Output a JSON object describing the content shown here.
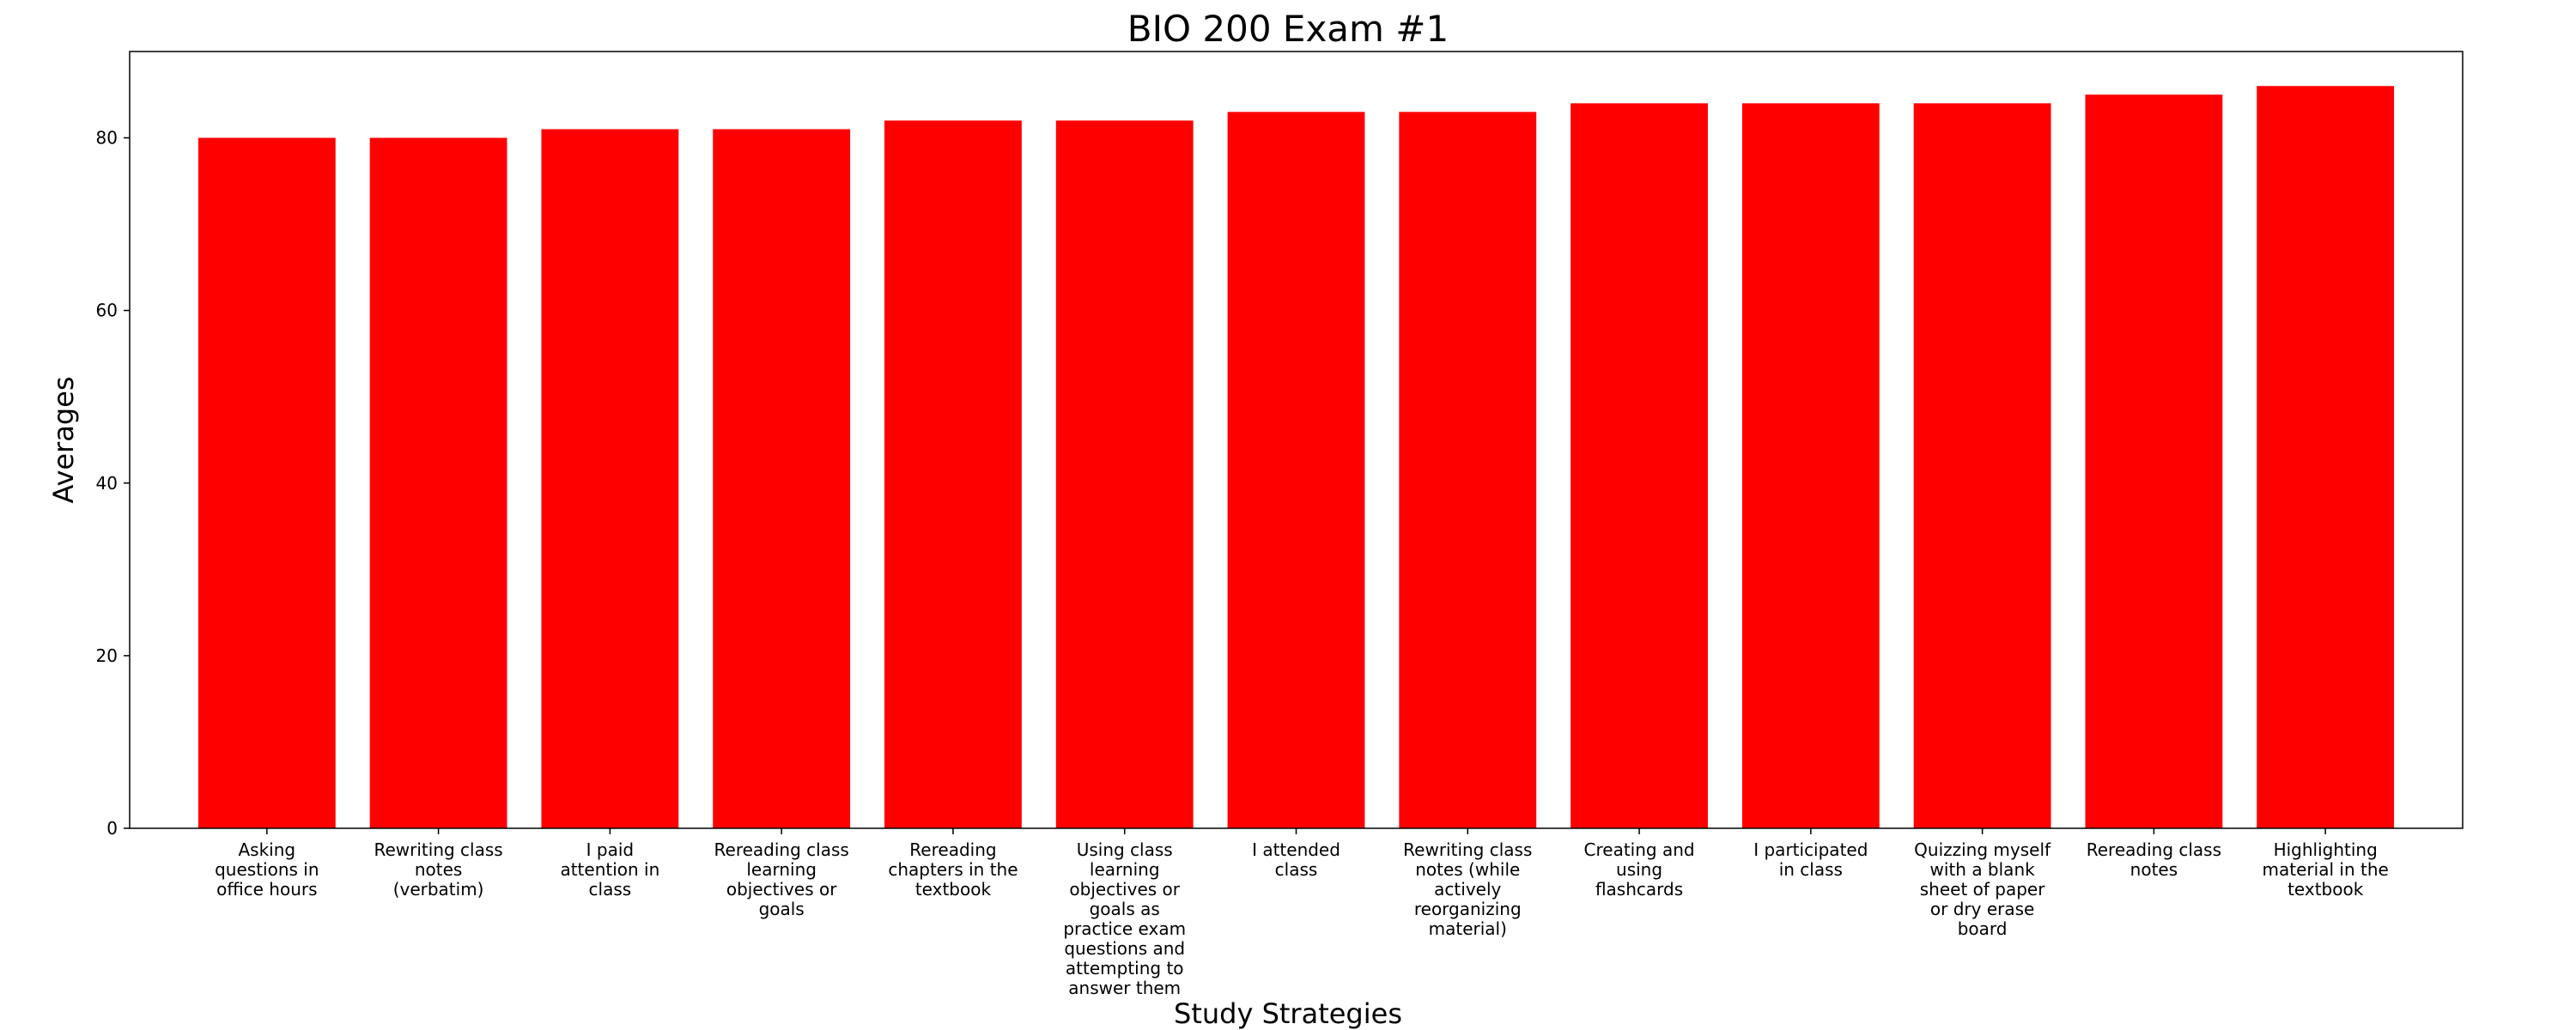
{
  "chart_data": {
    "type": "bar",
    "title": "BIO 200 Exam #1",
    "xlabel": "Study Strategies",
    "ylabel": "Averages",
    "ylim": [
      0,
      90
    ],
    "yticks": [
      0,
      20,
      40,
      60,
      80
    ],
    "grid": false,
    "legend": "none",
    "bar_color": "#ff0000",
    "categories": [
      "Asking questions in office hours",
      "Rewriting class notes (verbatim)",
      "I paid attention in class",
      "Rereading class learning objectives or goals",
      "Rereading chapters in the textbook",
      "Using class learning objectives or goals as practice exam questions and attempting to answer them",
      "I attended class",
      "Rewriting class notes (while actively reorganizing material)",
      "Creating and using flashcards",
      "I participated in class",
      "Quizzing myself with a blank sheet of paper or dry erase board",
      "Rereading class notes",
      "Highlighting material in the textbook"
    ],
    "category_lines": [
      [
        "Asking",
        "questions in",
        "office hours"
      ],
      [
        "Rewriting class",
        "notes",
        "(verbatim)"
      ],
      [
        "I paid",
        "attention in",
        "class"
      ],
      [
        "Rereading class",
        "learning",
        "objectives or",
        "goals"
      ],
      [
        "Rereading",
        "chapters in the",
        "textbook"
      ],
      [
        "Using class",
        "learning",
        "objectives or",
        "goals as",
        "practice exam",
        "questions and",
        "attempting to",
        "answer them"
      ],
      [
        "I attended",
        "class"
      ],
      [
        "Rewriting class",
        "notes (while",
        "actively",
        "reorganizing",
        "material)"
      ],
      [
        "Creating and",
        "using",
        "flashcards"
      ],
      [
        "I participated",
        "in class"
      ],
      [
        "Quizzing myself",
        "with a blank",
        "sheet of paper",
        "or dry erase",
        "board"
      ],
      [
        "Rereading class",
        "notes"
      ],
      [
        "Highlighting",
        "material in the",
        "textbook"
      ]
    ],
    "values": [
      80,
      80,
      81,
      81,
      82,
      82,
      83,
      83,
      84,
      84,
      84,
      85,
      86
    ]
  }
}
